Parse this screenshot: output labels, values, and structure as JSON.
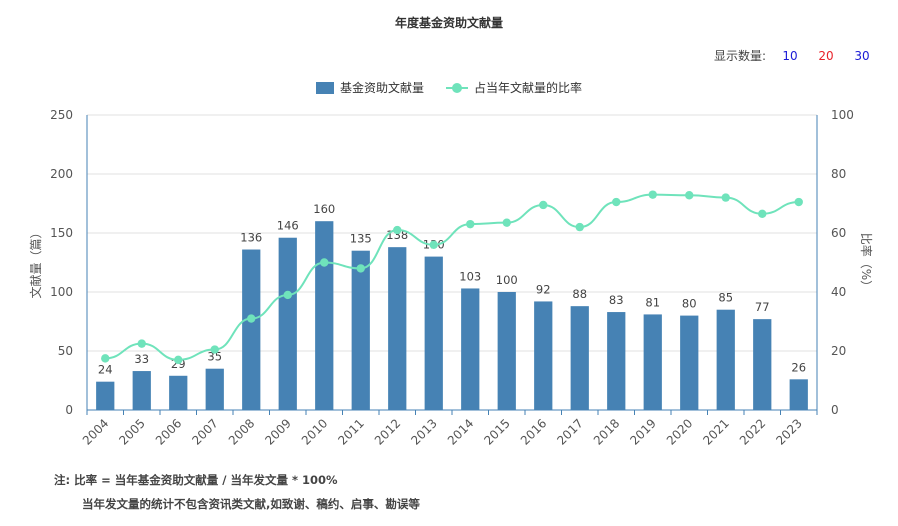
{
  "title": "年度基金资助文献量",
  "display_count": {
    "label": "显示数量:",
    "options": [
      {
        "label": "10",
        "color": "#1a1ad6"
      },
      {
        "label": "20",
        "color": "#e8222a"
      },
      {
        "label": "30",
        "color": "#1a1ad6"
      }
    ]
  },
  "legend": {
    "bar_label": "基金资助文献量",
    "line_label": "占当年文献量的比率"
  },
  "colors": {
    "bar": "#4682b4",
    "line": "#6fe3bb",
    "axis": "#4682b4",
    "grid": "#e0e0e0"
  },
  "chart_data": {
    "type": "bar",
    "categories": [
      "2004",
      "2005",
      "2006",
      "2007",
      "2008",
      "2009",
      "2010",
      "2011",
      "2012",
      "2013",
      "2014",
      "2015",
      "2016",
      "2017",
      "2018",
      "2019",
      "2020",
      "2021",
      "2022",
      "2023"
    ],
    "series": [
      {
        "name": "基金资助文献量",
        "type": "bar",
        "axis": "left",
        "values": [
          24,
          33,
          29,
          35,
          136,
          146,
          160,
          135,
          138,
          130,
          103,
          100,
          92,
          88,
          83,
          81,
          80,
          85,
          77,
          26
        ]
      },
      {
        "name": "占当年文献量的比率",
        "type": "line",
        "axis": "right",
        "values": [
          17.5,
          22.5,
          17,
          20.5,
          31,
          39,
          50,
          48,
          61,
          56,
          63,
          63.5,
          69.5,
          62,
          70.5,
          73,
          72.8,
          72,
          66.5,
          70.5
        ]
      }
    ],
    "ylabel": "文献量（篇）",
    "ylabel_right": "比率（%）",
    "ylim": [
      0,
      250
    ],
    "ylim_right": [
      0,
      100
    ],
    "yticks": [
      0,
      50,
      100,
      150,
      200,
      250
    ],
    "yticks_right": [
      0,
      20,
      40,
      60,
      80,
      100
    ],
    "grid": true,
    "legend_position": "top-center"
  },
  "notes": {
    "line1": "注:   比率 = 当年基金资助文献量 / 当年发文量 * 100%",
    "line2": "当年发文量的统计不包含资讯类文献,如致谢、稿约、启事、勘误等"
  }
}
